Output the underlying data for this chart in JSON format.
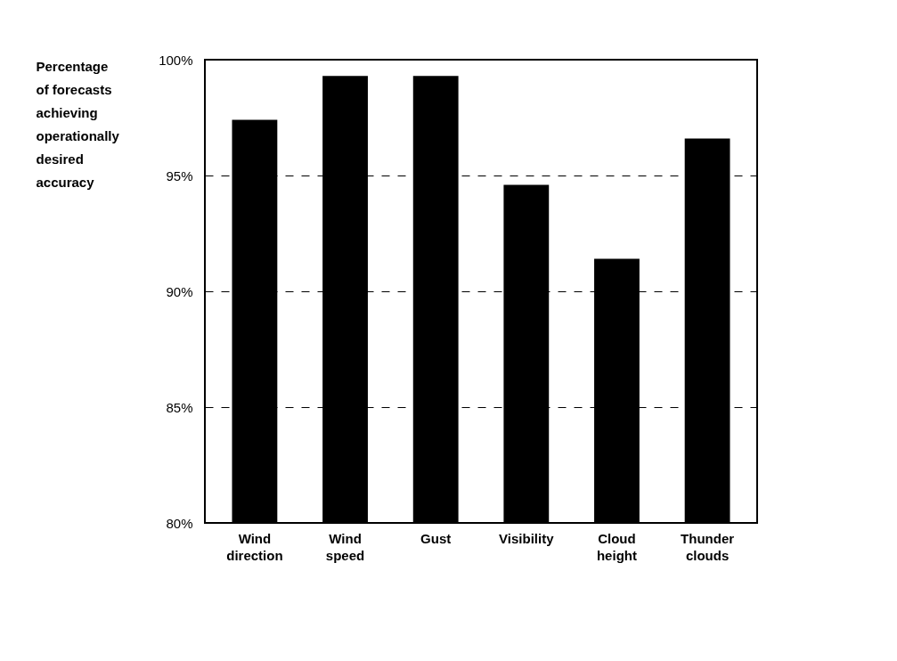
{
  "chart_data": {
    "type": "bar",
    "ylabel": "Percentage of forecasts achieving operationally desired accuracy",
    "categories": [
      "Wind direction",
      "Wind speed",
      "Gust",
      "Visibility",
      "Cloud height",
      "Thunder clouds"
    ],
    "values": [
      97.4,
      99.3,
      99.3,
      94.6,
      91.4,
      96.6
    ],
    "color": "#000000",
    "ylim": [
      80,
      100
    ],
    "yticks": [
      {
        "value": 80,
        "label": "80%"
      },
      {
        "value": 85,
        "label": "85%"
      },
      {
        "value": 90,
        "label": "90%"
      },
      {
        "value": 95,
        "label": "95%"
      },
      {
        "value": 100,
        "label": "100%"
      }
    ],
    "grid": "y",
    "line_style": "dashed"
  }
}
